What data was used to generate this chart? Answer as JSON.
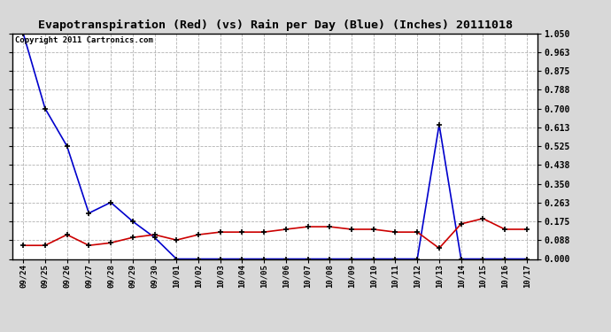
{
  "title": "Evapotranspiration (Red) (vs) Rain per Day (Blue) (Inches) 20111018",
  "copyright_text": "Copyright 2011 Cartronics.com",
  "x_labels": [
    "09/24",
    "09/25",
    "09/26",
    "09/27",
    "09/28",
    "09/29",
    "09/30",
    "10/01",
    "10/02",
    "10/03",
    "10/04",
    "10/05",
    "10/06",
    "10/07",
    "10/08",
    "10/09",
    "10/10",
    "10/11",
    "10/12",
    "10/13",
    "10/14",
    "10/15",
    "10/16",
    "10/17"
  ],
  "blue_values": [
    1.05,
    0.7,
    0.525,
    0.213,
    0.263,
    0.175,
    0.1,
    0.0,
    0.0,
    0.0,
    0.0,
    0.0,
    0.0,
    0.0,
    0.0,
    0.0,
    0.0,
    0.0,
    0.0,
    0.625,
    0.0,
    0.0,
    0.0,
    0.0
  ],
  "red_values": [
    0.063,
    0.063,
    0.113,
    0.063,
    0.075,
    0.1,
    0.113,
    0.088,
    0.113,
    0.125,
    0.125,
    0.125,
    0.138,
    0.15,
    0.15,
    0.138,
    0.138,
    0.125,
    0.125,
    0.05,
    0.163,
    0.188,
    0.138,
    0.138
  ],
  "ylim": [
    0.0,
    1.05
  ],
  "yticks": [
    0.0,
    0.088,
    0.175,
    0.263,
    0.35,
    0.438,
    0.525,
    0.613,
    0.7,
    0.788,
    0.875,
    0.963,
    1.05
  ],
  "bg_color": "#d8d8d8",
  "plot_bg_color": "#ffffff",
  "blue_color": "#0000cc",
  "red_color": "#cc0000",
  "grid_color": "#aaaaaa",
  "title_fontsize": 9.5,
  "copyright_fontsize": 6.5
}
